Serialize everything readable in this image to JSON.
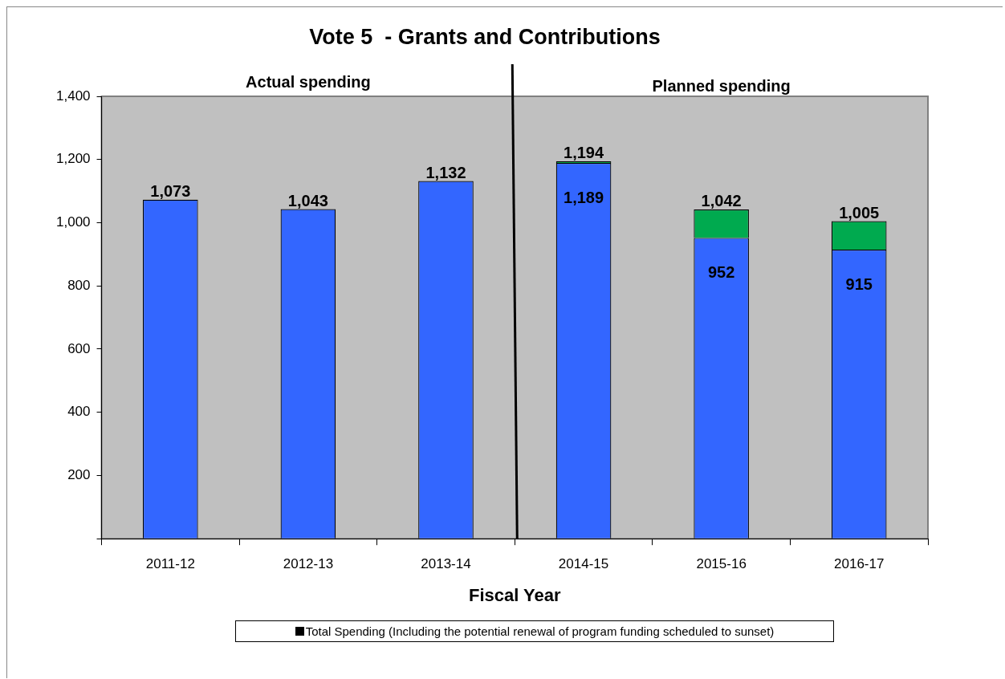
{
  "chart_data": {
    "type": "bar",
    "title": "Vote 5  - Grants and Contributions",
    "xlabel": "Fiscal Year",
    "categories": [
      "2011-12",
      "2012-13",
      "2013-14",
      "2014-15",
      "2015-16",
      "2016-17"
    ],
    "stacked": true,
    "series": [
      {
        "color": "#3366ff",
        "values": [
          1073,
          1043,
          1132,
          1189,
          952,
          915
        ],
        "value_labels": [
          null,
          null,
          null,
          "1,189",
          "952",
          "915"
        ]
      },
      {
        "color": "#00aa4f",
        "values": [
          null,
          null,
          null,
          5,
          90,
          90
        ]
      }
    ],
    "totals": [
      "1,073",
      "1,043",
      "1,132",
      "1,194",
      "1,042",
      "1,005"
    ],
    "ylim": [
      0,
      1400
    ],
    "yticks": [
      {
        "value": 0,
        "label": null
      },
      {
        "value": 200,
        "label": "200"
      },
      {
        "value": 400,
        "label": "400"
      },
      {
        "value": 600,
        "label": "600"
      },
      {
        "value": 800,
        "label": "800"
      },
      {
        "value": 1000,
        "label": "1,000"
      },
      {
        "value": 1200,
        "label": "1,200"
      },
      {
        "value": 1400,
        "label": "1,400"
      }
    ],
    "grid": false,
    "legend": false,
    "annotations": [
      "Actual spending",
      "Planned spending",
      "Total Spending (Including the potential renewal of program funding scheduled to sunset)"
    ]
  }
}
